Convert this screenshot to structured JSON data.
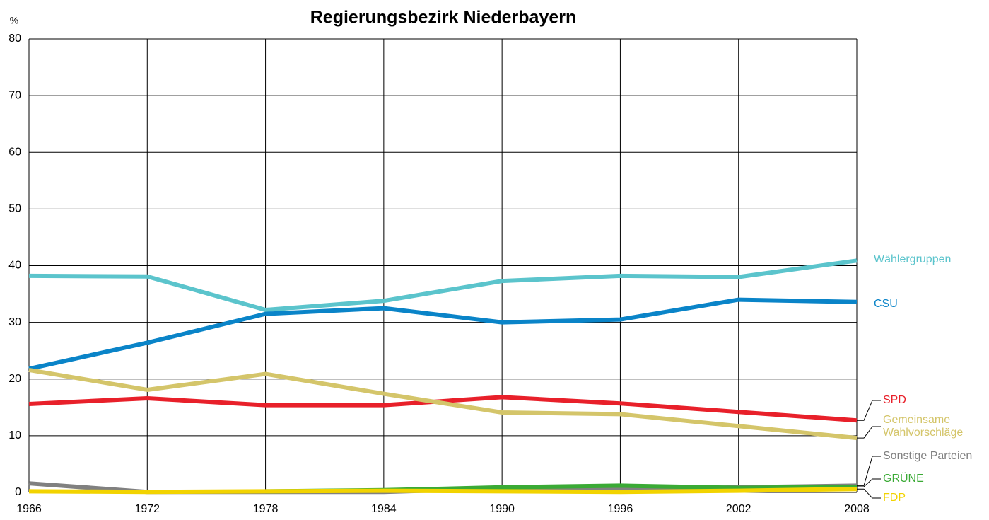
{
  "chart_data": {
    "type": "line",
    "title": "Regierungsbezirk Niederbayern",
    "y_label": "%",
    "x": [
      1966,
      1972,
      1978,
      1984,
      1990,
      1996,
      2002,
      2008
    ],
    "xlim": [
      1966,
      2008
    ],
    "xticks": [
      1966,
      1972,
      1978,
      1984,
      1990,
      1996,
      2002,
      2008
    ],
    "ylim": [
      0,
      80
    ],
    "yticks": [
      0,
      10,
      20,
      30,
      40,
      50,
      60,
      70,
      80
    ],
    "grid": true,
    "series": [
      {
        "name": "Wählergruppen",
        "color": "#5bc4cc",
        "values": [
          38.2,
          38.1,
          32.2,
          33.8,
          37.3,
          38.2,
          38.0,
          40.9
        ]
      },
      {
        "name": "CSU",
        "color": "#0a84c8",
        "values": [
          21.8,
          26.4,
          31.5,
          32.5,
          30.0,
          30.5,
          34.0,
          33.6
        ]
      },
      {
        "name": "SPD",
        "color": "#e8202a",
        "values": [
          15.6,
          16.6,
          15.4,
          15.4,
          16.8,
          15.7,
          14.2,
          12.7
        ]
      },
      {
        "name": "Gemeinsame Wahlvorschläge",
        "color": "#d4c56a",
        "values": [
          21.6,
          18.1,
          20.9,
          17.4,
          14.1,
          13.8,
          11.7,
          9.6
        ]
      },
      {
        "name": "Sonstige Parteien",
        "color": "#808080",
        "values": [
          1.6,
          0.1,
          0.1,
          0.1,
          0.7,
          0.6,
          0.9,
          1.2
        ]
      },
      {
        "name": "GRÜNE",
        "color": "#3aaa35",
        "values": [
          null,
          null,
          0.2,
          0.4,
          0.9,
          1.2,
          0.8,
          1.0
        ]
      },
      {
        "name": "FDP",
        "color": "#f2d300",
        "values": [
          0.2,
          0.1,
          0.2,
          0.3,
          0.2,
          0.1,
          0.3,
          0.6
        ]
      }
    ]
  }
}
